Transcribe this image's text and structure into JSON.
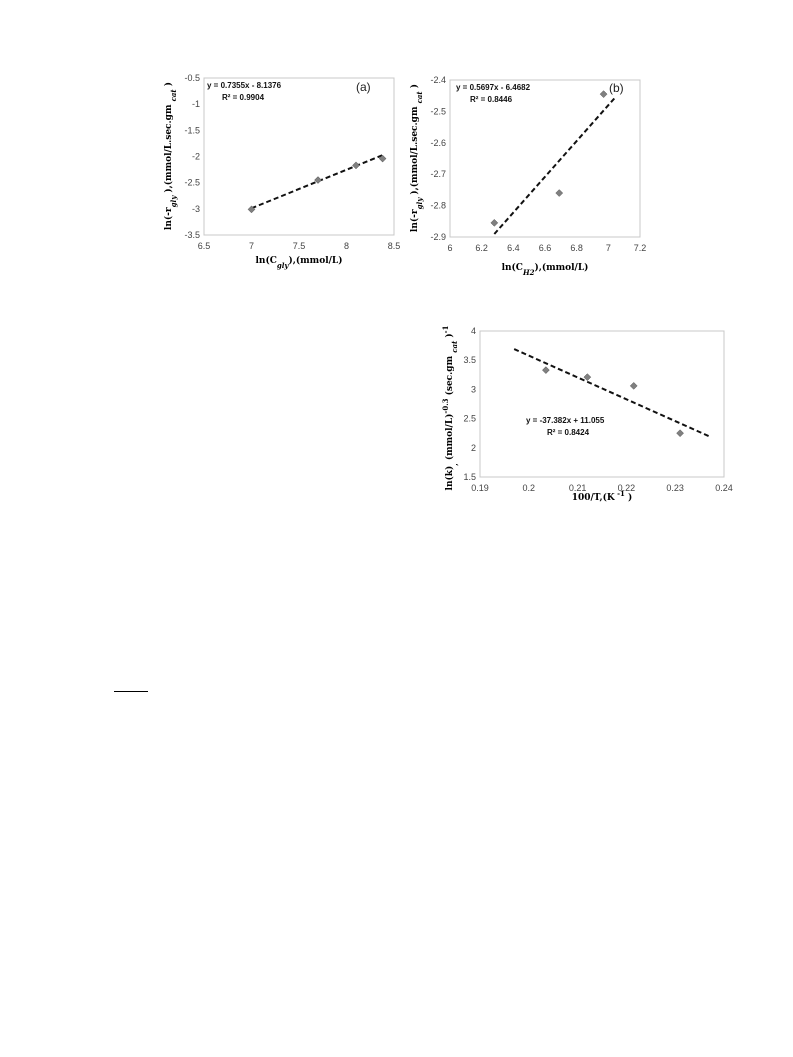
{
  "chart_data": [
    {
      "type": "scatter",
      "panel_label": "(a)",
      "xlabel": "ln(C gly),(mmol/L)",
      "ylabel": "ln(-r gly ),(mmol/L.sec.gm cat )",
      "xlim": [
        6.5,
        8.5
      ],
      "ylim": [
        -3.5,
        -0.5
      ],
      "xticks": [
        "6.5",
        "7",
        "7.5",
        "8",
        "8.5"
      ],
      "yticks": [
        "-0.5",
        "-1",
        "-1.5",
        "-2",
        "-2.5",
        "-3",
        "-3.5"
      ],
      "series": [
        {
          "x": [
            7.0,
            7.7,
            8.1,
            8.38
          ],
          "y": [
            -3.01,
            -2.45,
            -2.17,
            -2.04
          ]
        }
      ],
      "trendline": {
        "equation": "y = 0.7355x - 8.1376",
        "r2": "R² = 0.9904",
        "slope": 0.7355,
        "intercept": -8.1376,
        "x_range": [
          7.0,
          8.4
        ]
      },
      "grid": false,
      "marker_color": "#808080"
    },
    {
      "type": "scatter",
      "panel_label": "(b)",
      "xlabel": "ln(C H2),(mmol/L)",
      "ylabel": "ln(-r gly ),(mmol/L.sec.gm cat )",
      "xlim": [
        6,
        7.2
      ],
      "ylim": [
        -2.9,
        -2.4
      ],
      "xticks": [
        "6",
        "6.2",
        "6.4",
        "6.6",
        "6.8",
        "7",
        "7.2"
      ],
      "yticks": [
        "-2.4",
        "-2.5",
        "-2.6",
        "-2.7",
        "-2.8",
        "-2.9"
      ],
      "series": [
        {
          "x": [
            6.28,
            6.69,
            6.97
          ],
          "y": [
            -2.855,
            -2.76,
            -2.445
          ]
        }
      ],
      "trendline": {
        "equation": "y = 0.5697x - 6.4682",
        "r2": "R² = 0.8446",
        "slope": 0.5697,
        "intercept": -6.4682,
        "x_range": [
          6.28,
          7.05
        ]
      },
      "grid": false,
      "marker_color": "#808080"
    },
    {
      "type": "scatter",
      "panel_label": "",
      "xlabel": "100/T,(K -1 )",
      "ylabel": "ln(k), (mmol/L) -0.3 (sec.gm cat ) -1",
      "xlim": [
        0.19,
        0.24
      ],
      "ylim": [
        1.5,
        4
      ],
      "xticks": [
        "0.19",
        "0.2",
        "0.21",
        "0.22",
        "0.23",
        "0.24"
      ],
      "yticks": [
        "4",
        "3.5",
        "3",
        "2.5",
        "2",
        "1.5"
      ],
      "series": [
        {
          "x": [
            0.2035,
            0.212,
            0.2215,
            0.231
          ],
          "y": [
            3.33,
            3.21,
            3.06,
            2.25
          ]
        }
      ],
      "trendline": {
        "equation": "y = -37.382x + 11.055",
        "r2": "R² = 0.8424",
        "slope": -37.382,
        "intercept": 11.055,
        "x_range": [
          0.197,
          0.237
        ]
      },
      "grid": false,
      "marker_color": "#808080"
    }
  ]
}
